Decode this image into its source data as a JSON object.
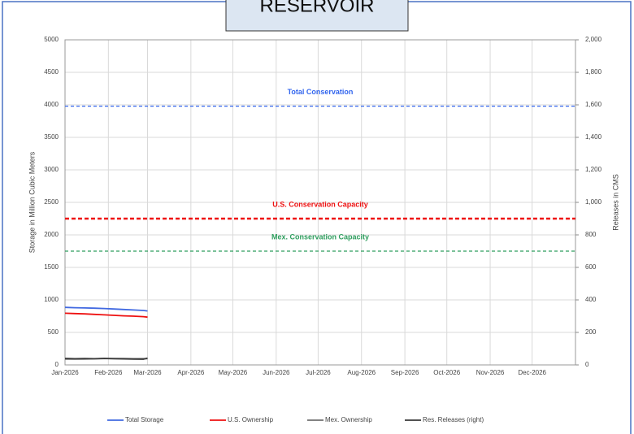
{
  "chart_data": {
    "type": "line",
    "title": "RESERVOIR",
    "y_label": "Storage in Million Cubic Meters",
    "y2_label": "Releases in CMS",
    "x": [
      "2026-01-01",
      "2026-01-08",
      "2026-01-15",
      "2026-01-22",
      "2026-01-29",
      "2026-02-05",
      "2026-02-12",
      "2026-02-19",
      "2026-02-26",
      "2026-03-01"
    ],
    "xlim": [
      "2026-01-01",
      "2027-01-01"
    ],
    "xticks": [
      {
        "value": "2026-01-01",
        "label": "Jan-2026"
      },
      {
        "value": "2026-02-01",
        "label": "Feb-2026"
      },
      {
        "value": "2026-03-01",
        "label": "Mar-2026"
      },
      {
        "value": "2026-04-01",
        "label": "Apr-2026"
      },
      {
        "value": "2026-05-01",
        "label": "May-2026"
      },
      {
        "value": "2026-06-01",
        "label": "Jun-2026"
      },
      {
        "value": "2026-07-01",
        "label": "Jul-2026"
      },
      {
        "value": "2026-08-01",
        "label": "Aug-2026"
      },
      {
        "value": "2026-09-01",
        "label": "Sep-2026"
      },
      {
        "value": "2026-10-01",
        "label": "Oct-2026"
      },
      {
        "value": "2026-11-01",
        "label": "Nov-2026"
      },
      {
        "value": "2026-12-01",
        "label": "Dec-2026"
      }
    ],
    "ylim": [
      0,
      5000
    ],
    "yticks": [
      0,
      500,
      1000,
      1500,
      2000,
      2500,
      3000,
      3500,
      4000,
      4500,
      5000
    ],
    "y2lim": [
      0,
      2000
    ],
    "y2ticks": [
      0,
      200,
      400,
      600,
      800,
      {
        "value": 1000,
        "label": "1,000"
      },
      {
        "value": 1200,
        "label": "1,200"
      },
      {
        "value": 1400,
        "label": "1,400"
      },
      {
        "value": 1600,
        "label": "1,600"
      },
      {
        "value": 1800,
        "label": "1,800"
      },
      {
        "value": 2000,
        "label": "2,000"
      }
    ],
    "grid": true,
    "legend": "bottom",
    "series": [
      {
        "name": "Total Storage",
        "color": "#4169e1",
        "values": [
          885,
          880,
          876,
          872,
          868,
          860,
          852,
          845,
          838,
          830
        ]
      },
      {
        "name": "U.S. Ownership",
        "color": "#ee1111",
        "values": [
          795,
          790,
          785,
          778,
          770,
          762,
          755,
          750,
          742,
          735
        ]
      },
      {
        "name": "Mex. Ownership",
        "color": "#707070",
        "values": [
          90,
          90,
          91,
          94,
          98,
          98,
          97,
          95,
          96,
          95
        ]
      },
      {
        "name": "Res. Releases (right)",
        "color": "#3a3a3a",
        "axis": "y2",
        "values": [
          40,
          38,
          39,
          38,
          40,
          38,
          37,
          36,
          35,
          42
        ]
      }
    ],
    "annotations": [
      {
        "text": "Total Conservation",
        "value": 3980,
        "color": "#3366ee"
      },
      {
        "text": "U.S. Conservation Capacity",
        "value": 2250,
        "color": "#ee1111"
      },
      {
        "text": "Mex. Conservation Capacity",
        "value": 1750,
        "color": "#2e9e5e"
      }
    ]
  }
}
